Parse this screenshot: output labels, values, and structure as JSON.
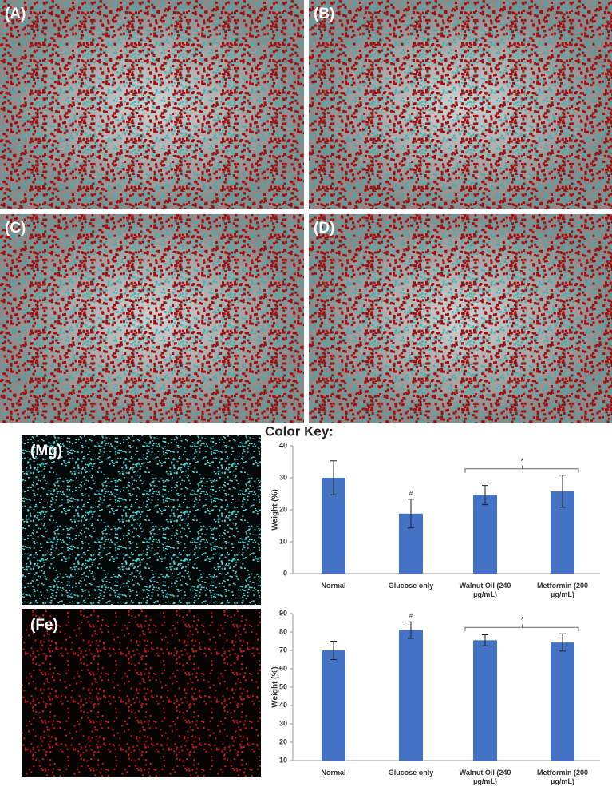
{
  "panels": {
    "a": "(A)",
    "b": "(B)",
    "c": "(C)",
    "d": "(D)"
  },
  "color_key": {
    "title": "Color Key:",
    "mg": "(Mg)",
    "fe": "(Fe)"
  },
  "chart_data": [
    {
      "type": "bar",
      "ylabel": "Weight (%)",
      "categories": [
        "Normal",
        "Glucose only",
        "Walnut Oil (240 µg/mL)",
        "Metformin (200 µg/mL)"
      ],
      "values": [
        30,
        18.8,
        24.6,
        25.8
      ],
      "errors": [
        5.3,
        4.5,
        3,
        5
      ],
      "color": "#4472c4",
      "ylim": [
        0,
        40
      ],
      "yticks": [
        0,
        10,
        20,
        30,
        40
      ],
      "annotations": [
        "#",
        "*"
      ]
    },
    {
      "type": "bar",
      "ylabel": "Weight (%)",
      "categories": [
        "Normal",
        "Glucose only",
        "Walnut Oil (240 µg/mL)",
        "Metformin (200 µg/mL)"
      ],
      "values": [
        70,
        81,
        75.5,
        74.3
      ],
      "errors": [
        5,
        4.5,
        3,
        4.7
      ],
      "color": "#4472c4",
      "ylim": [
        10,
        90
      ],
      "yticks": [
        10,
        20,
        30,
        40,
        50,
        60,
        70,
        80,
        90
      ],
      "annotations": [
        "#",
        "*"
      ]
    }
  ]
}
